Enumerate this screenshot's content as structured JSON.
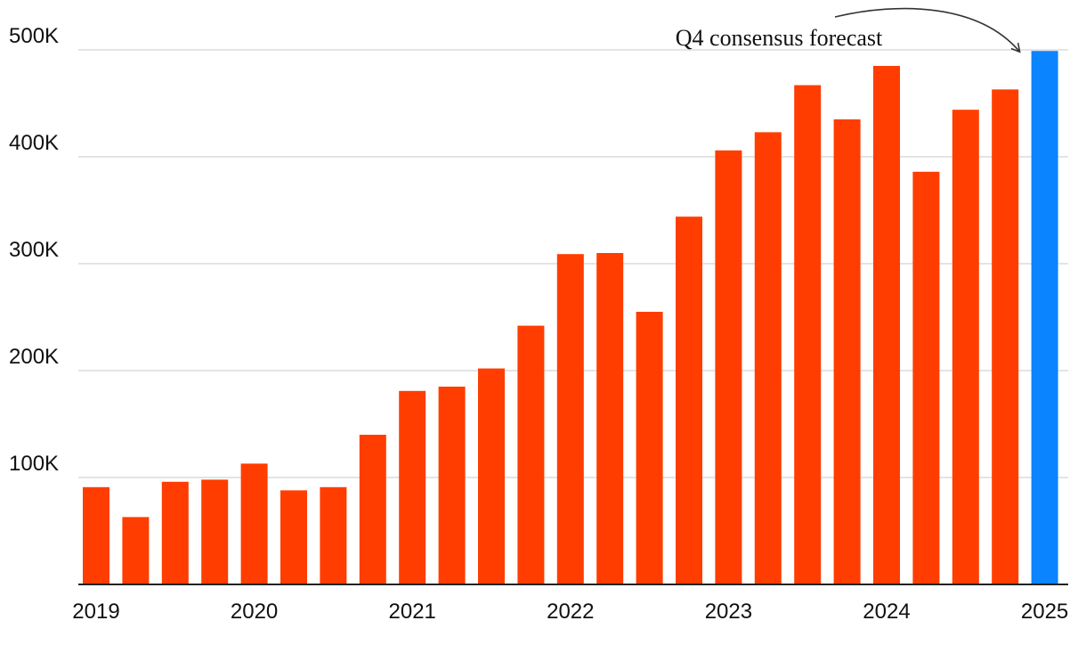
{
  "chart_data": {
    "type": "bar",
    "title": "",
    "xlabel": "",
    "ylabel": "",
    "ylim": [
      0,
      500000
    ],
    "y_ticks": [
      {
        "value": 100000,
        "label": "100K"
      },
      {
        "value": 200000,
        "label": "200K"
      },
      {
        "value": 300000,
        "label": "300K"
      },
      {
        "value": 400000,
        "label": "400K"
      },
      {
        "value": 500000,
        "label": "500K"
      }
    ],
    "x_ticks": [
      {
        "index": 0,
        "label": "2019"
      },
      {
        "index": 4,
        "label": "2020"
      },
      {
        "index": 8,
        "label": "2021"
      },
      {
        "index": 12,
        "label": "2022"
      },
      {
        "index": 16,
        "label": "2023"
      },
      {
        "index": 20,
        "label": "2024"
      },
      {
        "index": 24,
        "label": "2025"
      }
    ],
    "grid": true,
    "values": [
      91000,
      63000,
      96000,
      98000,
      113000,
      88000,
      91000,
      140000,
      181000,
      185000,
      202000,
      242000,
      309000,
      310000,
      255000,
      344000,
      406000,
      423000,
      467000,
      435000,
      485000,
      386000,
      444000,
      463000,
      499000
    ],
    "bar_kinds": [
      "actual",
      "actual",
      "actual",
      "actual",
      "actual",
      "actual",
      "actual",
      "actual",
      "actual",
      "actual",
      "actual",
      "actual",
      "actual",
      "actual",
      "actual",
      "actual",
      "actual",
      "actual",
      "actual",
      "actual",
      "actual",
      "actual",
      "actual",
      "actual",
      "forecast"
    ],
    "colors": {
      "actual": "#ff3d00",
      "forecast": "#0a84ff",
      "grid": "#dcdcdc",
      "axis": "#222222",
      "text": "#111111"
    },
    "annotation": {
      "text": "Q4 consensus forecast",
      "target_index": 24
    }
  }
}
